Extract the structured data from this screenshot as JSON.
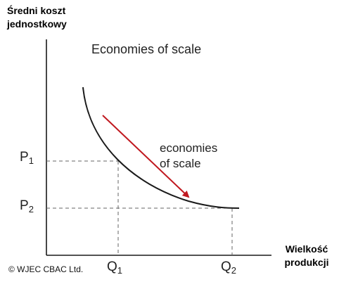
{
  "diagram": {
    "title": "Economies of scale",
    "y_axis_label_line1": "Średni koszt",
    "y_axis_label_line2": "jednostkowy",
    "x_axis_label_line1": "Wielkość",
    "x_axis_label_line2": "produkcji",
    "annotation_line1": "economies",
    "annotation_line2": "of scale",
    "ticks": {
      "p1_base": "P",
      "p1_sub": "1",
      "p2_base": "P",
      "p2_sub": "2",
      "q1_base": "Q",
      "q1_sub": "1",
      "q2_base": "Q",
      "q2_sub": "2"
    },
    "copyright": "© WJEC CBAC Ltd."
  },
  "colors": {
    "axis": "#1a1a1a",
    "curve": "#1a1a1a",
    "dashed": "#666666",
    "arrow": "#c0181f"
  }
}
